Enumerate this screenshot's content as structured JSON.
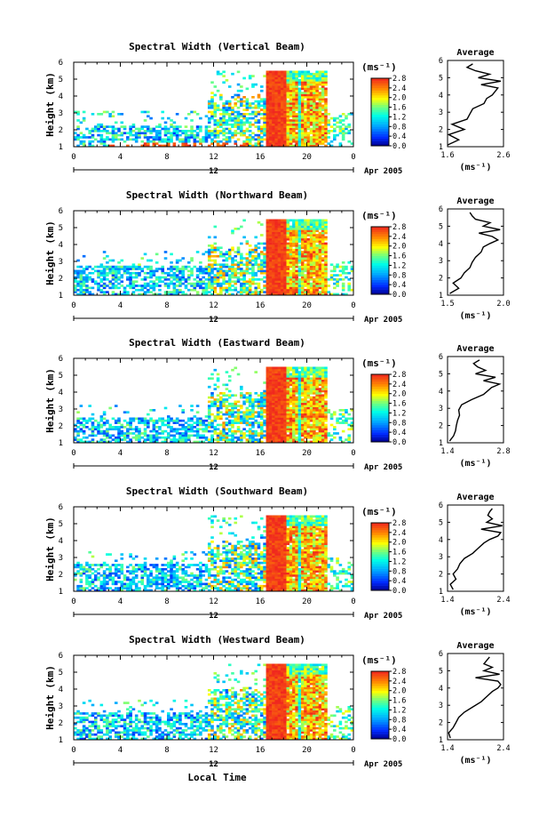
{
  "figure": {
    "xlabel": "Local Time",
    "date_label": "Apr 2005",
    "day_label": "12",
    "height_label": "Height (km)",
    "unit_label": "(ms⁻¹)",
    "average_title": "Average"
  },
  "chart_data": [
    {
      "type": "heatmap",
      "title": "Spectral Width (Vertical Beam)",
      "xlabel": "Local Time",
      "ylabel": "Height (km)",
      "x_ticks": [
        "0",
        "4",
        "8",
        "12",
        "16",
        "20",
        "0"
      ],
      "y_ticks": [
        "1",
        "2",
        "3",
        "4",
        "5",
        "6"
      ],
      "xlim": [
        0,
        24
      ],
      "ylim": [
        1,
        6
      ],
      "colorbar_ticks": [
        "0.0",
        "0.4",
        "0.8",
        "1.2",
        "1.6",
        "2.0",
        "2.4",
        "2.8"
      ],
      "colorbar_range": [
        0,
        2.8
      ],
      "average_profile": {
        "xlabel": "(ms⁻¹)",
        "x_ticks": [
          "1.6",
          "2.6"
        ],
        "xlim": [
          1.6,
          2.6
        ],
        "y_ticks": [
          "1",
          "2",
          "3",
          "4",
          "5",
          "6"
        ],
        "heights": [
          1.1,
          1.4,
          1.7,
          2.0,
          2.3,
          2.6,
          2.9,
          3.2,
          3.5,
          3.8,
          4.0,
          4.2,
          4.4,
          4.6,
          4.8,
          5.0,
          5.2,
          5.4,
          5.6,
          5.8
        ],
        "values": [
          1.6,
          1.8,
          1.62,
          1.9,
          1.68,
          1.95,
          2.0,
          2.05,
          2.25,
          2.3,
          2.4,
          2.45,
          2.5,
          2.2,
          2.55,
          2.15,
          2.35,
          2.1,
          1.95,
          2.05
        ]
      }
    },
    {
      "type": "heatmap",
      "title": "Spectral Width (Northward Beam)",
      "xlabel": "Local Time",
      "ylabel": "Height (km)",
      "x_ticks": [
        "0",
        "4",
        "8",
        "12",
        "16",
        "20",
        "0"
      ],
      "y_ticks": [
        "1",
        "2",
        "3",
        "4",
        "5",
        "6"
      ],
      "xlim": [
        0,
        24
      ],
      "ylim": [
        1,
        6
      ],
      "colorbar_ticks": [
        "0.0",
        "0.4",
        "0.8",
        "1.2",
        "1.6",
        "2.0",
        "2.4",
        "2.8"
      ],
      "colorbar_range": [
        0,
        2.8
      ],
      "average_profile": {
        "xlabel": "(ms⁻¹)",
        "x_ticks": [
          "1.5",
          "2.0"
        ],
        "xlim": [
          1.5,
          2.0
        ],
        "y_ticks": [
          "1",
          "2",
          "3",
          "4",
          "5",
          "6"
        ],
        "heights": [
          1.1,
          1.4,
          1.7,
          2.0,
          2.3,
          2.6,
          2.9,
          3.2,
          3.5,
          3.8,
          4.0,
          4.2,
          4.4,
          4.6,
          4.8,
          5.0,
          5.2,
          5.4,
          5.6,
          5.8
        ],
        "values": [
          1.52,
          1.6,
          1.55,
          1.62,
          1.65,
          1.7,
          1.72,
          1.75,
          1.8,
          1.82,
          1.88,
          1.95,
          1.9,
          1.78,
          1.97,
          1.82,
          1.88,
          1.75,
          1.72,
          1.7
        ]
      }
    },
    {
      "type": "heatmap",
      "title": "Spectral Width (Eastward Beam)",
      "xlabel": "Local Time",
      "ylabel": "Height (km)",
      "x_ticks": [
        "0",
        "4",
        "8",
        "12",
        "16",
        "20",
        "0"
      ],
      "y_ticks": [
        "1",
        "2",
        "3",
        "4",
        "5",
        "6"
      ],
      "xlim": [
        0,
        24
      ],
      "ylim": [
        1,
        6
      ],
      "colorbar_ticks": [
        "0.0",
        "0.4",
        "0.8",
        "1.2",
        "1.6",
        "2.0",
        "2.4",
        "2.8"
      ],
      "colorbar_range": [
        0,
        2.8
      ],
      "average_profile": {
        "xlabel": "(ms⁻¹)",
        "x_ticks": [
          "1.4",
          "2.8"
        ],
        "xlim": [
          1.4,
          2.8
        ],
        "y_ticks": [
          "1",
          "2",
          "3",
          "4",
          "5",
          "6"
        ],
        "heights": [
          1.1,
          1.4,
          1.7,
          2.0,
          2.3,
          2.6,
          2.9,
          3.2,
          3.5,
          3.8,
          4.0,
          4.2,
          4.4,
          4.6,
          4.8,
          5.0,
          5.2,
          5.4,
          5.6,
          5.8
        ],
        "values": [
          1.45,
          1.55,
          1.6,
          1.62,
          1.65,
          1.7,
          1.68,
          1.75,
          2.0,
          2.3,
          2.4,
          2.5,
          2.7,
          2.3,
          2.6,
          2.1,
          2.35,
          2.15,
          2.05,
          2.2
        ]
      }
    },
    {
      "type": "heatmap",
      "title": "Spectral Width (Southward Beam)",
      "xlabel": "Local Time",
      "ylabel": "Height (km)",
      "x_ticks": [
        "0",
        "4",
        "8",
        "12",
        "16",
        "20",
        "0"
      ],
      "y_ticks": [
        "1",
        "2",
        "3",
        "4",
        "5",
        "6"
      ],
      "xlim": [
        0,
        24
      ],
      "ylim": [
        1,
        6
      ],
      "colorbar_ticks": [
        "0.0",
        "0.4",
        "0.8",
        "1.2",
        "1.6",
        "2.0",
        "2.4",
        "2.8"
      ],
      "colorbar_range": [
        0,
        2.8
      ],
      "average_profile": {
        "xlabel": "(ms⁻¹)",
        "x_ticks": [
          "1.4",
          "2.4"
        ],
        "xlim": [
          1.4,
          2.4
        ],
        "y_ticks": [
          "1",
          "2",
          "3",
          "4",
          "5",
          "6"
        ],
        "heights": [
          1.1,
          1.4,
          1.7,
          2.0,
          2.3,
          2.6,
          2.9,
          3.2,
          3.5,
          3.8,
          4.0,
          4.2,
          4.4,
          4.6,
          4.8,
          5.0,
          5.2,
          5.4,
          5.6,
          5.8
        ],
        "values": [
          1.5,
          1.45,
          1.55,
          1.5,
          1.58,
          1.62,
          1.7,
          1.85,
          1.95,
          2.05,
          2.15,
          2.3,
          2.35,
          2.0,
          2.38,
          2.1,
          2.2,
          2.12,
          2.15,
          2.2
        ]
      }
    },
    {
      "type": "heatmap",
      "title": "Spectral Width (Westward Beam)",
      "xlabel": "Local Time",
      "ylabel": "Height (km)",
      "x_ticks": [
        "0",
        "4",
        "8",
        "12",
        "16",
        "20",
        "0"
      ],
      "y_ticks": [
        "1",
        "2",
        "3",
        "4",
        "5",
        "6"
      ],
      "xlim": [
        0,
        24
      ],
      "ylim": [
        1,
        6
      ],
      "colorbar_ticks": [
        "0.0",
        "0.4",
        "0.8",
        "1.2",
        "1.6",
        "2.0",
        "2.4",
        "2.8"
      ],
      "colorbar_range": [
        0,
        2.8
      ],
      "average_profile": {
        "xlabel": "(ms⁻¹)",
        "x_ticks": [
          "1.4",
          "2.4"
        ],
        "xlim": [
          1.4,
          2.4
        ],
        "y_ticks": [
          "1",
          "2",
          "3",
          "4",
          "5",
          "6"
        ],
        "heights": [
          1.1,
          1.4,
          1.7,
          2.0,
          2.3,
          2.6,
          2.9,
          3.2,
          3.5,
          3.8,
          4.0,
          4.2,
          4.4,
          4.6,
          4.8,
          5.0,
          5.2,
          5.4,
          5.6,
          5.8
        ],
        "values": [
          1.45,
          1.42,
          1.5,
          1.55,
          1.6,
          1.7,
          1.85,
          2.0,
          2.1,
          2.2,
          2.3,
          2.35,
          2.3,
          1.9,
          2.33,
          2.05,
          2.2,
          2.05,
          2.1,
          2.15
        ]
      }
    }
  ]
}
